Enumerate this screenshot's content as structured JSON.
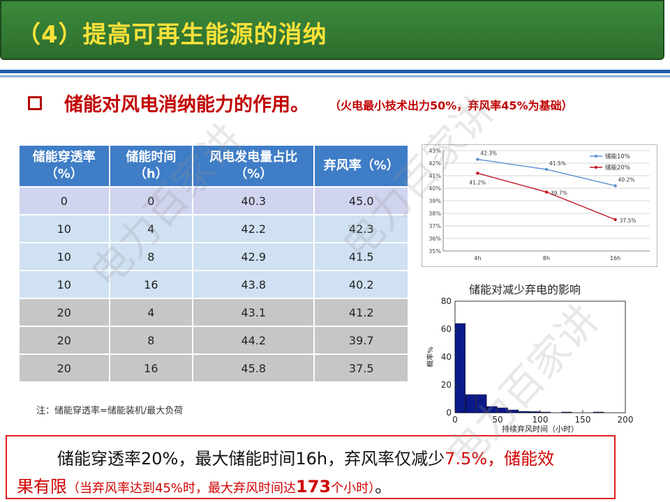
{
  "slide": {
    "title": "（4）提高可再生能源的消纳",
    "subtitle": "储能对风电消纳能力的作用。",
    "subnote": "（火电最小技术出力50%，弃风率45%为基础）",
    "note": "注：储能穿透率=储能装机/最大负荷",
    "watermark": "电力百家讲"
  },
  "table": {
    "headers": [
      [
        "储能穿透率",
        "（%）"
      ],
      [
        "储能时间",
        "（h）"
      ],
      [
        "风电发电量占比",
        "（%）"
      ],
      [
        "弃风率（%）"
      ]
    ],
    "rows": [
      [
        "0",
        "0",
        "40.3",
        "45.0"
      ],
      [
        "10",
        "4",
        "42.2",
        "42.3"
      ],
      [
        "10",
        "8",
        "42.9",
        "41.5"
      ],
      [
        "10",
        "16",
        "43.8",
        "40.2"
      ],
      [
        "20",
        "4",
        "43.1",
        "41.2"
      ],
      [
        "20",
        "8",
        "44.2",
        "39.7"
      ],
      [
        "20",
        "16",
        "45.8",
        "37.5"
      ]
    ]
  },
  "callout": {
    "line1_a": "储能穿透率20%，最大储能时间16h，弃风率仅减少",
    "line1_red": "7.5%，储能效",
    "line2_red": "果有限",
    "line2_small_a": "（当弃风率达到45%时，最大弃风时间达",
    "line2_bold": "173",
    "line2_small_b": "个小时）",
    "line2_end": "。"
  },
  "chart_data": [
    {
      "type": "line",
      "categories": [
        "4h",
        "8h",
        "16h"
      ],
      "ylim": [
        35,
        43
      ],
      "yticks": [
        "35%",
        "36%",
        "37%",
        "38%",
        "39%",
        "40%",
        "41%",
        "42%",
        "43%"
      ],
      "series": [
        {
          "name": "储能10%",
          "values": [
            42.3,
            41.5,
            40.2
          ],
          "labels": [
            "42.3%",
            "41.5%",
            "40.2%"
          ],
          "color": "#5b8ed1"
        },
        {
          "name": "储能20%",
          "values": [
            41.2,
            39.7,
            37.5
          ],
          "labels": [
            "41.2%",
            "39.7%",
            "37.5%"
          ],
          "color": "#c0141e"
        }
      ],
      "grid": true,
      "legend": "top-right"
    },
    {
      "type": "bar",
      "title": "储能对减少弃电的影响",
      "xlabel": "持续弃风时间（小时）",
      "ylabel": "概率%",
      "xlim": [
        0,
        200
      ],
      "ylim": [
        0,
        80
      ],
      "xticks": [
        "0",
        "50",
        "100",
        "150",
        "200"
      ],
      "yticks": [
        "0",
        "20",
        "40",
        "60",
        "80"
      ],
      "bin_width": 12.5,
      "bars": [
        {
          "x": 0,
          "value": 64
        },
        {
          "x": 12.5,
          "value": 13
        },
        {
          "x": 25,
          "value": 13
        },
        {
          "x": 37.5,
          "value": 4.5
        },
        {
          "x": 50,
          "value": 3.5
        },
        {
          "x": 62.5,
          "value": 2
        },
        {
          "x": 75,
          "value": 1
        },
        {
          "x": 87.5,
          "value": 0.8
        },
        {
          "x": 100,
          "value": 0.5
        },
        {
          "x": 125,
          "value": 0.5
        },
        {
          "x": 162.5,
          "value": 0.5
        }
      ],
      "color": "#0b1a8a"
    }
  ]
}
